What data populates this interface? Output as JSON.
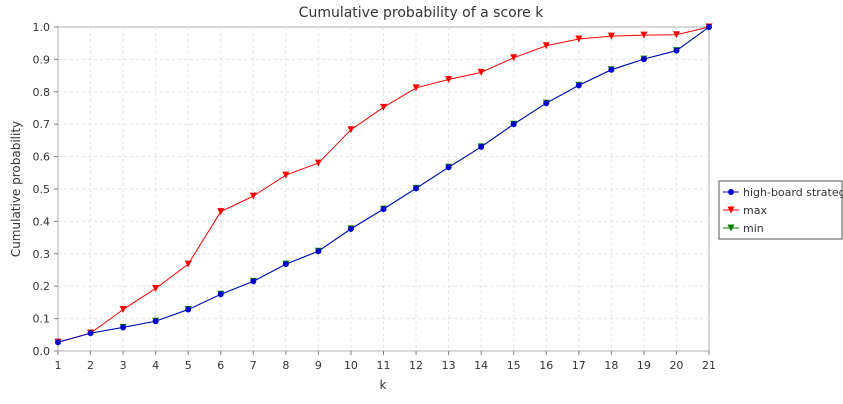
{
  "chart_data": {
    "type": "line",
    "title": "Cumulative probability of a score k",
    "xlabel": "k",
    "ylabel": "Cumulative probability",
    "xlim": [
      1,
      21
    ],
    "ylim": [
      0,
      1
    ],
    "x_ticks": [
      "1",
      "2",
      "3",
      "4",
      "5",
      "6",
      "7",
      "8",
      "9",
      "10",
      "11",
      "12",
      "13",
      "14",
      "15",
      "16",
      "17",
      "18",
      "19",
      "20",
      "21"
    ],
    "y_ticks": [
      "0.0",
      "0.1",
      "0.2",
      "0.3",
      "0.4",
      "0.5",
      "0.6",
      "0.7",
      "0.8",
      "0.9",
      "1.0"
    ],
    "grid": true,
    "legend_position": "right",
    "x": [
      1,
      2,
      3,
      4,
      5,
      6,
      7,
      8,
      9,
      10,
      11,
      12,
      13,
      14,
      15,
      16,
      17,
      18,
      19,
      20,
      21
    ],
    "series": [
      {
        "name": "high-board strategy",
        "color": "#0000cc",
        "marker": "circle",
        "values": [
          0.027,
          0.055,
          0.073,
          0.092,
          0.128,
          0.175,
          0.215,
          0.268,
          0.308,
          0.377,
          0.438,
          0.502,
          0.567,
          0.63,
          0.7,
          0.765,
          0.82,
          0.868,
          0.901,
          0.927,
          1.0
        ]
      },
      {
        "name": "max",
        "color": "#ff0000",
        "marker": "triangle-down",
        "values": [
          0.027,
          0.055,
          0.128,
          0.193,
          0.268,
          0.43,
          0.478,
          0.543,
          0.58,
          0.683,
          0.752,
          0.812,
          0.838,
          0.86,
          0.905,
          0.942,
          0.963,
          0.972,
          0.975,
          0.976,
          1.0
        ]
      },
      {
        "name": "min",
        "color": "#008000",
        "marker": "triangle-down",
        "values": [
          0.027,
          0.055,
          0.073,
          0.092,
          0.128,
          0.175,
          0.215,
          0.268,
          0.308,
          0.377,
          0.438,
          0.502,
          0.567,
          0.63,
          0.7,
          0.765,
          0.82,
          0.868,
          0.901,
          0.927,
          1.0
        ]
      }
    ]
  }
}
